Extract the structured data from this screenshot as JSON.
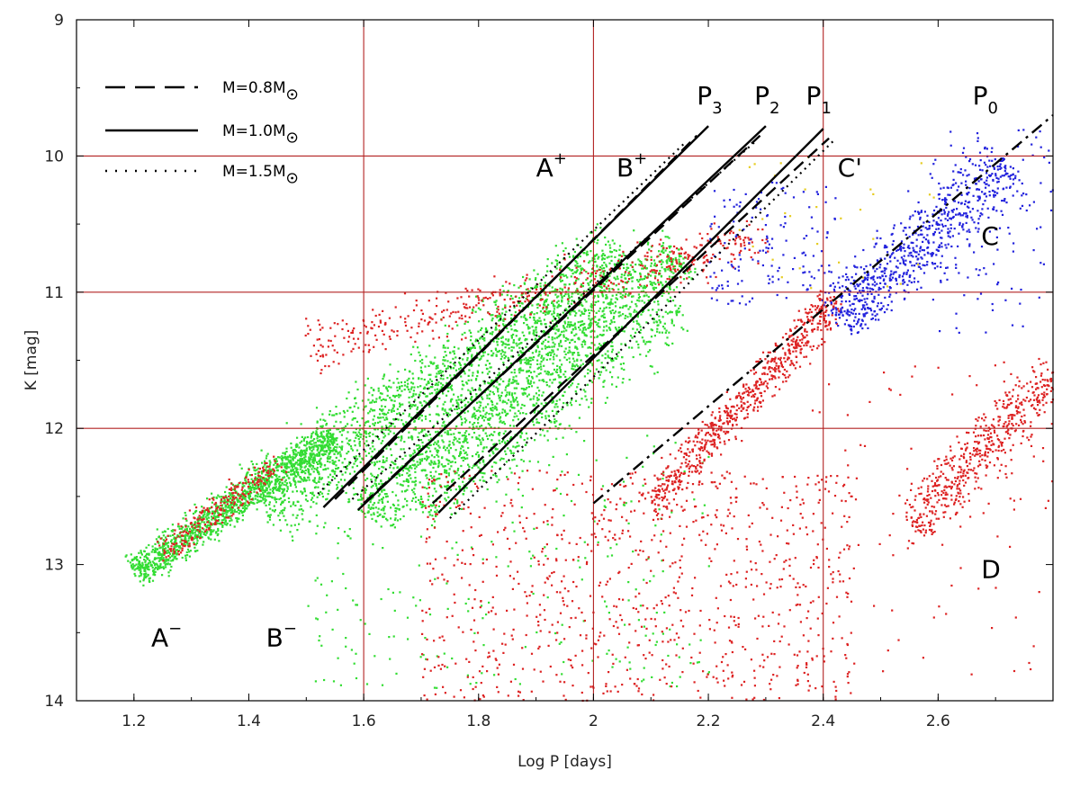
{
  "chart_data": {
    "type": "scatter",
    "title": "",
    "xlabel": "Log P [days]",
    "ylabel": "K [mag]",
    "xlim": [
      1.1,
      2.8
    ],
    "ylim": [
      9,
      14
    ],
    "y_inverted": true,
    "xticks": [
      "1.2",
      "1.4",
      "1.6",
      "1.8",
      "2",
      "2.2",
      "2.4",
      "2.6"
    ],
    "xtick_values": [
      1.2,
      1.4,
      1.6,
      1.8,
      2.0,
      2.2,
      2.4,
      2.6
    ],
    "yticks": [
      "9",
      "10",
      "11",
      "12",
      "13",
      "14"
    ],
    "ytick_values": [
      9,
      10,
      11,
      12,
      13,
      14
    ],
    "grid_lines": {
      "x": [
        1.6,
        2.0,
        2.4
      ],
      "y": [
        10,
        11,
        12
      ],
      "color": "#b22222"
    },
    "legend": {
      "placement": "top-left",
      "entries": [
        {
          "label_main": "M=0.8M",
          "style": "dashed"
        },
        {
          "label_main": "M=1.0M",
          "style": "solid"
        },
        {
          "label_main": "M=1.5M",
          "style": "dotted"
        }
      ]
    },
    "region_labels": [
      {
        "main": "A",
        "sup": "−",
        "x": 1.23,
        "y": 13.6
      },
      {
        "main": "B",
        "sup": "−",
        "x": 1.43,
        "y": 13.6
      },
      {
        "main": "A",
        "sup": "+",
        "x": 1.9,
        "y": 10.15
      },
      {
        "main": "B",
        "sup": "+",
        "x": 2.04,
        "y": 10.15
      },
      {
        "main": "C'",
        "sup": "",
        "x": 2.425,
        "y": 10.15
      },
      {
        "main": "C",
        "sup": "",
        "x": 2.675,
        "y": 10.65
      },
      {
        "main": "D",
        "sup": "",
        "x": 2.675,
        "y": 13.1
      }
    ],
    "sequence_labels": [
      {
        "main": "P",
        "sub": "3",
        "x": 2.18,
        "y": 9.62
      },
      {
        "main": "P",
        "sub": "2",
        "x": 2.28,
        "y": 9.62
      },
      {
        "main": "P",
        "sub": "1",
        "x": 2.37,
        "y": 9.62
      },
      {
        "main": "P",
        "sub": "0",
        "x": 2.66,
        "y": 9.62
      }
    ],
    "model_tracks": [
      {
        "sequence": "P3",
        "mass": "M=1.0M",
        "style": "solid",
        "points": [
          [
            1.53,
            12.58
          ],
          [
            2.2,
            9.78
          ]
        ]
      },
      {
        "sequence": "P3",
        "mass": "M=0.8M",
        "style": "dashed",
        "points": [
          [
            1.55,
            12.52
          ],
          [
            2.18,
            9.85
          ]
        ]
      },
      {
        "sequence": "P3",
        "mass": "M=1.5M",
        "style": "dotted",
        "points": [
          [
            1.52,
            12.48
          ],
          [
            2.16,
            9.9
          ]
        ]
      },
      {
        "sequence": "P2",
        "mass": "M=1.0M",
        "style": "solid",
        "points": [
          [
            1.59,
            12.6
          ],
          [
            2.3,
            9.78
          ]
        ]
      },
      {
        "sequence": "P2",
        "mass": "M=0.8M",
        "style": "dashed",
        "points": [
          [
            1.6,
            12.55
          ],
          [
            2.29,
            9.85
          ]
        ]
      },
      {
        "sequence": "P2",
        "mass": "M=1.5M",
        "style": "dotted",
        "points": [
          [
            1.58,
            12.52
          ],
          [
            2.28,
            9.9
          ]
        ]
      },
      {
        "sequence": "P1",
        "mass": "M=1.0M",
        "style": "solid",
        "points": [
          [
            1.73,
            12.62
          ],
          [
            2.4,
            9.8
          ]
        ]
      },
      {
        "sequence": "P1",
        "mass": "M=0.8M",
        "style": "dashed",
        "points": [
          [
            1.72,
            12.55
          ],
          [
            2.41,
            9.87
          ]
        ]
      },
      {
        "sequence": "P1",
        "mass": "M=1.5M",
        "style": "dotted",
        "points": [
          [
            1.75,
            12.66
          ],
          [
            2.42,
            9.88
          ]
        ]
      },
      {
        "sequence": "P0",
        "mass": "M=1.0M",
        "style": "dashdot",
        "points": [
          [
            2.0,
            12.55
          ],
          [
            2.8,
            9.7
          ]
        ]
      }
    ],
    "point_groups": [
      {
        "color": "#33dd33",
        "count": 1400,
        "distribution": "strip",
        "start": [
          1.2,
          13.05
        ],
        "end": [
          1.55,
          12.05
        ],
        "width": 0.25
      },
      {
        "color": "#33dd33",
        "count": 1700,
        "distribution": "strip",
        "start": [
          1.42,
          12.55
        ],
        "end": [
          2.05,
          10.7
        ],
        "width": 0.55
      },
      {
        "color": "#33dd33",
        "count": 1400,
        "distribution": "strip",
        "start": [
          1.6,
          12.6
        ],
        "end": [
          2.15,
          10.7
        ],
        "width": 0.45
      },
      {
        "color": "#33dd33",
        "count": 500,
        "distribution": "strip",
        "start": [
          1.7,
          12.6
        ],
        "end": [
          2.15,
          11.1
        ],
        "width": 0.4
      },
      {
        "color": "#33dd33",
        "count": 300,
        "distribution": "box",
        "start": [
          1.5,
          12.0
        ],
        "end": [
          2.2,
          13.9
        ],
        "width": 0
      },
      {
        "color": "#dd2222",
        "count": 500,
        "distribution": "strip",
        "start": [
          1.5,
          11.4
        ],
        "end": [
          2.3,
          10.6
        ],
        "width": 0.35
      },
      {
        "color": "#dd2222",
        "count": 250,
        "distribution": "strip",
        "start": [
          1.25,
          12.9
        ],
        "end": [
          1.45,
          12.25
        ],
        "width": 0.2
      },
      {
        "color": "#dd2222",
        "count": 700,
        "distribution": "strip",
        "start": [
          2.1,
          12.55
        ],
        "end": [
          2.42,
          11.05
        ],
        "width": 0.25
      },
      {
        "color": "#dd2222",
        "count": 550,
        "distribution": "strip",
        "start": [
          2.55,
          12.7
        ],
        "end": [
          2.8,
          11.6
        ],
        "width": 0.35
      },
      {
        "color": "#dd2222",
        "count": 900,
        "distribution": "box",
        "start": [
          1.7,
          12.3
        ],
        "end": [
          2.45,
          14.0
        ],
        "width": 0
      },
      {
        "color": "#dd2222",
        "count": 120,
        "distribution": "box",
        "start": [
          2.35,
          11.5
        ],
        "end": [
          2.8,
          13.8
        ],
        "width": 0
      },
      {
        "color": "#2222dd",
        "count": 750,
        "distribution": "strip",
        "start": [
          2.42,
          11.2
        ],
        "end": [
          2.72,
          10.05
        ],
        "width": 0.45
      },
      {
        "color": "#2222dd",
        "count": 150,
        "distribution": "box",
        "start": [
          2.2,
          10.15
        ],
        "end": [
          2.42,
          11.1
        ],
        "width": 0
      },
      {
        "color": "#2222dd",
        "count": 120,
        "distribution": "box",
        "start": [
          2.58,
          9.8
        ],
        "end": [
          2.8,
          11.3
        ],
        "width": 0
      },
      {
        "color": "#e6cc22",
        "count": 30,
        "distribution": "box",
        "start": [
          2.25,
          10.0
        ],
        "end": [
          2.6,
          11.0
        ],
        "width": 0
      }
    ]
  }
}
